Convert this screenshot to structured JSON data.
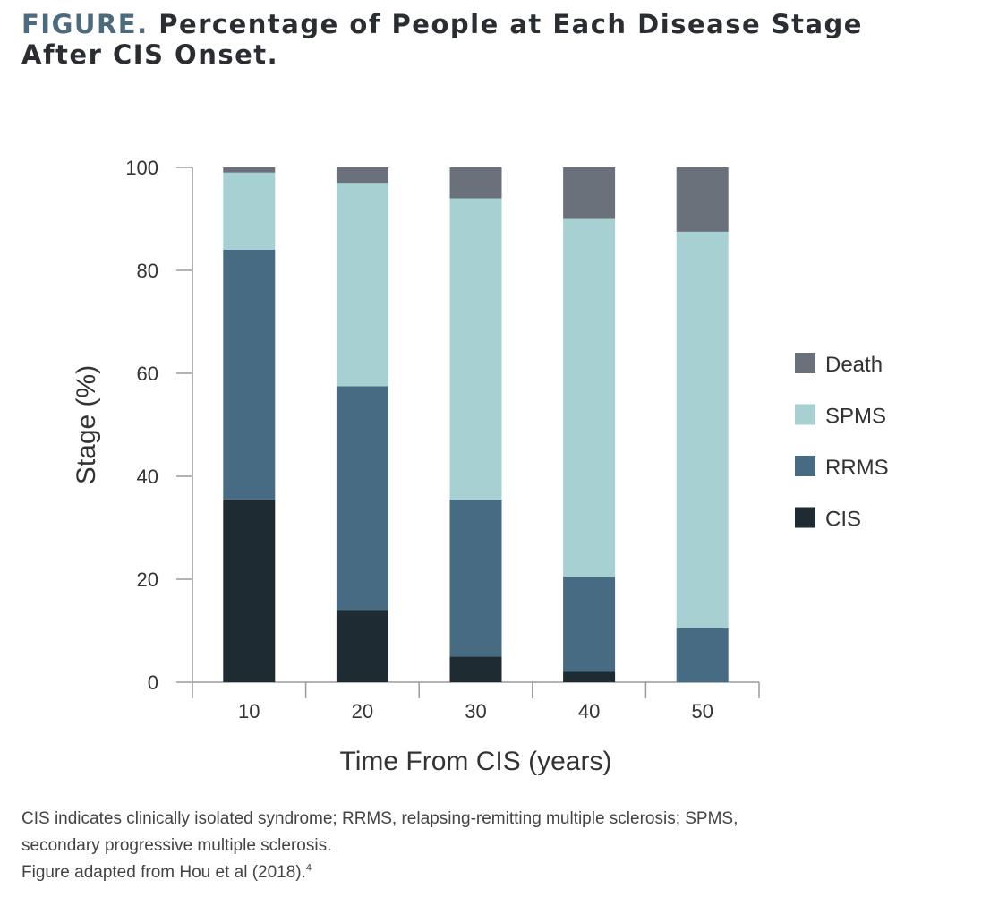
{
  "figure": {
    "title_lead": "FIGURE.",
    "title_rest": " Percentage of People at Each Disease Stage",
    "title_line2": "After CIS Onset."
  },
  "caption": {
    "line1": "CIS indicates clinically isolated syndrome; RRMS, relapsing-remitting multiple sclerosis; SPMS,",
    "line2": "secondary progressive multiple sclerosis.",
    "line3": "Figure adapted from Hou et al (2018).",
    "ref": "4"
  },
  "colors": {
    "Death": "#6b717b",
    "SPMS": "#a7d0d2",
    "RRMS": "#476b82",
    "CIS": "#1e2b33",
    "axis": "#9a9a9a",
    "text": "#333333"
  },
  "chart_data": {
    "type": "bar",
    "stacked": true,
    "title": "Percentage of People at Each Disease Stage After CIS Onset.",
    "xlabel": "Time From CIS (years)",
    "ylabel": "Stage (%)",
    "categories": [
      "10",
      "20",
      "30",
      "40",
      "50"
    ],
    "yticks": [
      0,
      20,
      40,
      60,
      80,
      100
    ],
    "ylim": [
      0,
      100
    ],
    "legend_position": "right",
    "legend_order": [
      "Death",
      "SPMS",
      "RRMS",
      "CIS"
    ],
    "series": [
      {
        "name": "CIS",
        "values": [
          35.5,
          14,
          5,
          2,
          0
        ]
      },
      {
        "name": "RRMS",
        "values": [
          48.5,
          43.5,
          30.5,
          18.5,
          10.5
        ]
      },
      {
        "name": "SPMS",
        "values": [
          15,
          39.5,
          58.5,
          69.5,
          77
        ]
      },
      {
        "name": "Death",
        "values": [
          1,
          3,
          6,
          10,
          12.5
        ]
      }
    ]
  }
}
